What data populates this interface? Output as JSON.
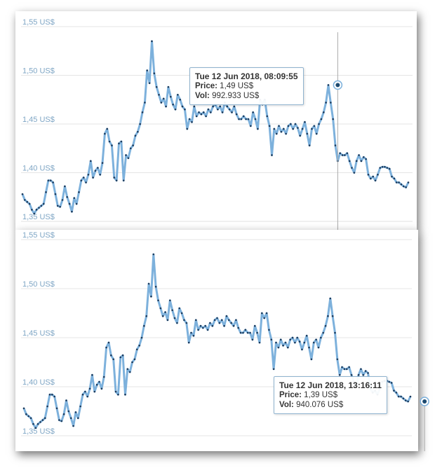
{
  "chart_data": [
    {
      "type": "line",
      "y_ticks": [
        "1,35 US$",
        "1,40 US$",
        "1,45 US$",
        "1,50 US$",
        "1,55 US$"
      ],
      "y_tick_values": [
        1.35,
        1.4,
        1.45,
        1.5,
        1.55
      ],
      "ylim": [
        1.35,
        1.55
      ],
      "grid": true,
      "series": [
        {
          "values": []
        }
      ],
      "tooltip": {
        "date": "Tue 12 Jun 2018, 08:09:55",
        "price_label": "Price:",
        "price_value": "1,49 US$",
        "vol_label": "Vol:",
        "vol_value": "992.933 US$",
        "point_y": 1.49
      }
    },
    {
      "type": "line",
      "y_ticks": [
        "1,35 US$",
        "1,40 US$",
        "1,45 US$",
        "1,50 US$",
        "1,55 US$"
      ],
      "y_tick_values": [
        1.35,
        1.4,
        1.45,
        1.5,
        1.55
      ],
      "ylim": [
        1.35,
        1.55
      ],
      "grid": true,
      "series": [
        {
          "values": []
        }
      ],
      "tooltip": {
        "date": "Tue 12 Jun 2018, 13:16:11",
        "price_label": "Price:",
        "price_value": "1,39 US$",
        "vol_label": "Vol:",
        "vol_value": "940.076 US$",
        "point_y": 1.385
      }
    }
  ],
  "price_series": [
    1.378,
    1.372,
    1.37,
    1.368,
    1.362,
    1.358,
    1.362,
    1.364,
    1.366,
    1.368,
    1.38,
    1.392,
    1.392,
    1.39,
    1.378,
    1.366,
    1.365,
    1.372,
    1.386,
    1.375,
    1.368,
    1.36,
    1.374,
    1.368,
    1.38,
    1.392,
    1.395,
    1.39,
    1.398,
    1.412,
    1.395,
    1.402,
    1.405,
    1.398,
    1.41,
    1.44,
    1.445,
    1.432,
    1.428,
    1.395,
    1.392,
    1.43,
    1.432,
    1.392,
    1.418,
    1.415,
    1.425,
    1.428,
    1.438,
    1.442,
    1.45,
    1.462,
    1.472,
    1.505,
    1.492,
    1.535,
    1.502,
    1.488,
    1.48,
    1.472,
    1.476,
    1.468,
    1.488,
    1.478,
    1.47,
    1.465,
    1.48,
    1.475,
    1.468,
    1.465,
    1.445,
    1.455,
    1.452,
    1.468,
    1.458,
    1.462,
    1.46,
    1.462,
    1.458,
    1.465,
    1.462,
    1.468,
    1.47,
    1.465,
    1.468,
    1.462,
    1.472,
    1.468,
    1.465,
    1.462,
    1.468,
    1.46,
    1.455,
    1.455,
    1.458,
    1.455,
    1.455,
    1.448,
    1.462,
    1.455,
    1.445,
    1.475,
    1.47,
    1.475,
    1.458,
    1.448,
    1.418,
    1.445,
    1.44,
    1.448,
    1.442,
    1.445,
    1.44,
    1.448,
    1.45,
    1.445,
    1.45,
    1.446,
    1.438,
    1.445,
    1.452,
    1.44,
    1.428,
    1.445,
    1.448,
    1.44,
    1.45,
    1.455,
    1.462,
    1.472,
    1.49,
    1.472,
    1.455,
    1.428,
    1.412,
    1.42,
    1.418,
    1.418,
    1.42,
    1.412,
    1.405,
    1.4,
    1.412,
    1.418,
    1.412,
    1.416,
    1.414,
    1.398,
    1.394,
    1.396,
    1.392,
    1.398,
    1.405,
    1.406,
    1.406,
    1.405,
    1.404,
    1.396,
    1.394,
    1.39,
    1.39,
    1.388,
    1.386,
    1.385,
    1.39
  ]
}
